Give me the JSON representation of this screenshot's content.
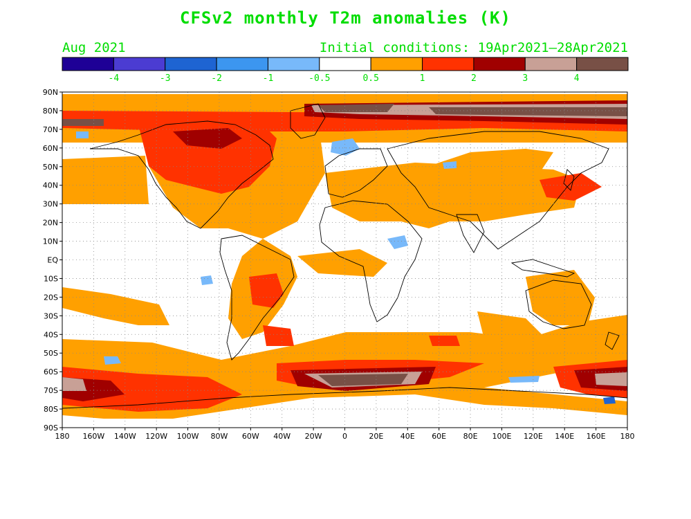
{
  "title": "CFSv2 monthly T2m anomalies (K)",
  "valid_month": "Aug 2021",
  "initial_conditions": "Initial conditions: 19Apr2021—28Apr2021",
  "colorbar": {
    "colors": [
      "#1e0096",
      "#4b3cd2",
      "#1e64d2",
      "#3c96f0",
      "#78b9fa",
      "#ffffff",
      "#ffa000",
      "#ff3200",
      "#a00000",
      "#c8a096",
      "#785046"
    ],
    "labels": [
      "-4",
      "-3",
      "-2",
      "-1",
      "-0.5",
      "0.5",
      "1",
      "2",
      "3",
      "4"
    ]
  },
  "axes": {
    "lat_labels": [
      "90N",
      "80N",
      "70N",
      "60N",
      "50N",
      "40N",
      "30N",
      "20N",
      "10N",
      "EQ",
      "10S",
      "20S",
      "30S",
      "40S",
      "50S",
      "60S",
      "70S",
      "80S",
      "90S"
    ],
    "lon_labels": [
      "180",
      "160W",
      "140W",
      "120W",
      "100W",
      "80W",
      "60W",
      "40W",
      "20W",
      "0",
      "20E",
      "40E",
      "60E",
      "80E",
      "100E",
      "120E",
      "140E",
      "160E",
      "180"
    ]
  }
}
